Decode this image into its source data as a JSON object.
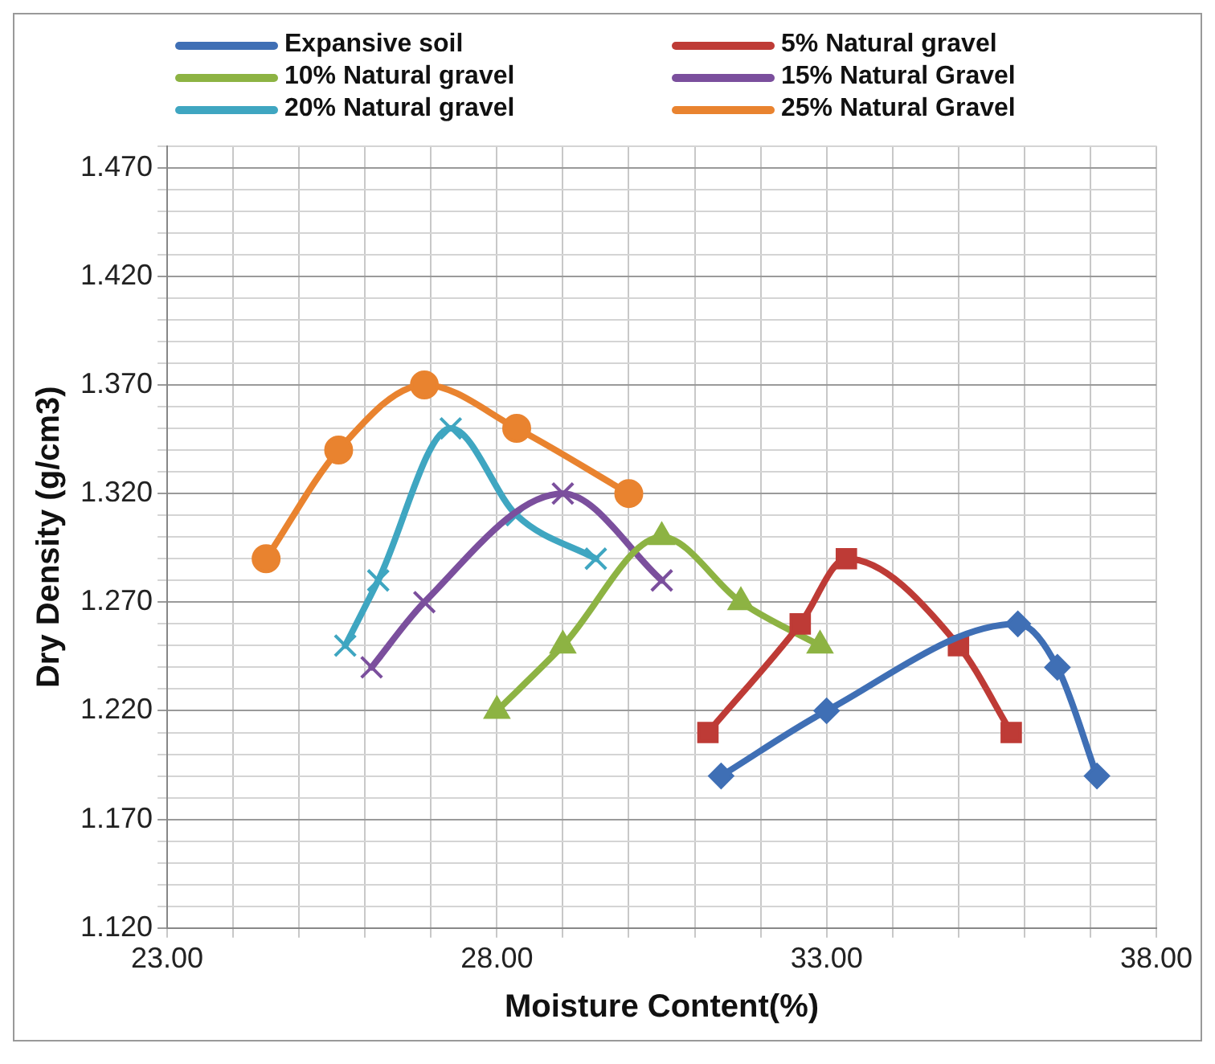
{
  "chart_data": {
    "type": "line",
    "xlabel": "Moisture Content(%)",
    "ylabel": "Dry Density (g/cm3)",
    "xlim": [
      23,
      38
    ],
    "xticks": [
      {
        "value": 23,
        "label": "23.00"
      },
      {
        "value": 24,
        "label": null
      },
      {
        "value": 25,
        "label": null
      },
      {
        "value": 26,
        "label": null
      },
      {
        "value": 27,
        "label": null
      },
      {
        "value": 28,
        "label": "28.00"
      },
      {
        "value": 29,
        "label": null
      },
      {
        "value": 30,
        "label": null
      },
      {
        "value": 31,
        "label": null
      },
      {
        "value": 32,
        "label": null
      },
      {
        "value": 33,
        "label": "33.00"
      },
      {
        "value": 34,
        "label": null
      },
      {
        "value": 35,
        "label": null
      },
      {
        "value": 36,
        "label": null
      },
      {
        "value": 37,
        "label": null
      },
      {
        "value": 38,
        "label": "38.00"
      }
    ],
    "ylim": [
      1.12,
      1.48
    ],
    "yticks": [
      {
        "value": 1.12,
        "label": "1.120"
      },
      {
        "value": 1.13,
        "label": null
      },
      {
        "value": 1.14,
        "label": null
      },
      {
        "value": 1.15,
        "label": null
      },
      {
        "value": 1.16,
        "label": null
      },
      {
        "value": 1.17,
        "label": "1.170"
      },
      {
        "value": 1.18,
        "label": null
      },
      {
        "value": 1.19,
        "label": null
      },
      {
        "value": 1.2,
        "label": null
      },
      {
        "value": 1.21,
        "label": null
      },
      {
        "value": 1.22,
        "label": "1.220"
      },
      {
        "value": 1.23,
        "label": null
      },
      {
        "value": 1.24,
        "label": null
      },
      {
        "value": 1.25,
        "label": null
      },
      {
        "value": 1.26,
        "label": null
      },
      {
        "value": 1.27,
        "label": "1.270"
      },
      {
        "value": 1.28,
        "label": null
      },
      {
        "value": 1.29,
        "label": null
      },
      {
        "value": 1.3,
        "label": null
      },
      {
        "value": 1.31,
        "label": null
      },
      {
        "value": 1.32,
        "label": "1.320"
      },
      {
        "value": 1.33,
        "label": null
      },
      {
        "value": 1.34,
        "label": null
      },
      {
        "value": 1.35,
        "label": null
      },
      {
        "value": 1.36,
        "label": null
      },
      {
        "value": 1.37,
        "label": "1.370"
      },
      {
        "value": 1.38,
        "label": null
      },
      {
        "value": 1.39,
        "label": null
      },
      {
        "value": 1.4,
        "label": null
      },
      {
        "value": 1.41,
        "label": null
      },
      {
        "value": 1.42,
        "label": "1.420"
      },
      {
        "value": 1.43,
        "label": null
      },
      {
        "value": 1.44,
        "label": null
      },
      {
        "value": 1.45,
        "label": null
      },
      {
        "value": 1.46,
        "label": null
      },
      {
        "value": 1.47,
        "label": "1.470"
      },
      {
        "value": 1.48,
        "label": null
      }
    ],
    "grid": true,
    "legend": "top",
    "series": [
      {
        "name": "Expansive soil",
        "color": "#3f6fb5",
        "marker": "diamond",
        "x": [
          31.4,
          33.0,
          35.9,
          36.5,
          37.1
        ],
        "values": [
          1.19,
          1.22,
          1.26,
          1.24,
          1.19
        ]
      },
      {
        "name": "5% Natural gravel",
        "color": "#be3b36",
        "marker": "square",
        "x": [
          31.2,
          32.6,
          33.3,
          35.0,
          35.8
        ],
        "values": [
          1.21,
          1.26,
          1.29,
          1.25,
          1.21
        ]
      },
      {
        "name": "10% Natural gravel",
        "color": "#8db343",
        "marker": "triangle",
        "x": [
          28.0,
          29.0,
          30.5,
          31.7,
          32.9
        ],
        "values": [
          1.22,
          1.25,
          1.3,
          1.27,
          1.25
        ]
      },
      {
        "name": "15% Natural Gravel",
        "color": "#7b4f9d",
        "marker": "cross",
        "x": [
          26.1,
          26.9,
          29.0,
          30.5
        ],
        "values": [
          1.24,
          1.27,
          1.32,
          1.28
        ]
      },
      {
        "name": "20% Natural gravel",
        "color": "#3fa6c1",
        "marker": "cross",
        "x": [
          25.7,
          26.2,
          27.3,
          28.3,
          29.5
        ],
        "values": [
          1.25,
          1.28,
          1.35,
          1.31,
          1.29
        ]
      },
      {
        "name": "25% Natural Gravel",
        "color": "#e9832f",
        "marker": "circle",
        "x": [
          24.5,
          25.6,
          26.9,
          28.3,
          30.0
        ],
        "values": [
          1.29,
          1.34,
          1.37,
          1.35,
          1.32
        ]
      }
    ]
  }
}
